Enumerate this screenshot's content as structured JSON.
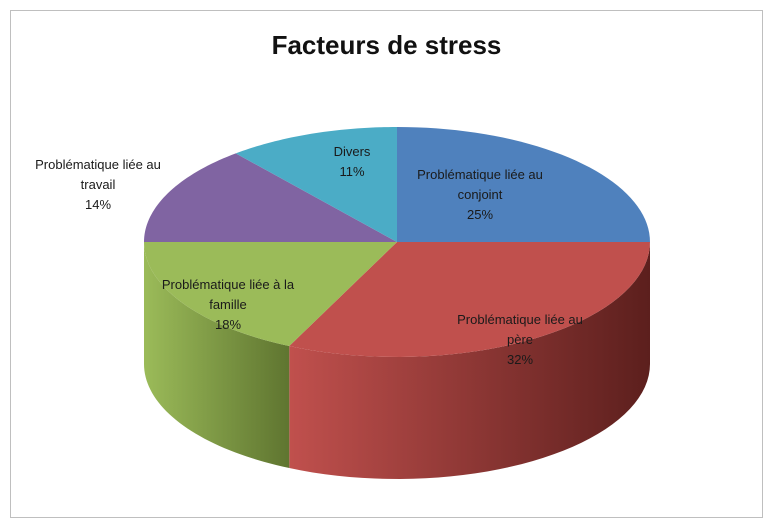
{
  "chart_data": {
    "type": "pie3d",
    "title": "Facteurs de stress",
    "categories": [
      "Problématique liée au conjoint",
      "Problématique liée au père",
      "Problématique liée à la famille",
      "Problématique liée au travail",
      "Divers"
    ],
    "values": [
      25,
      32,
      18,
      14,
      11
    ],
    "value_labels": [
      "25%",
      "32%",
      "18%",
      "14%",
      "11%"
    ],
    "colors": [
      "#4f81bd",
      "#c0504d",
      "#9bbb59",
      "#8064a2",
      "#4bacc6"
    ],
    "side_colors": [
      "#2c4d75",
      "#5c1f1d",
      "#5f7530",
      "#4d3b63",
      "#2b7a8e"
    ]
  }
}
